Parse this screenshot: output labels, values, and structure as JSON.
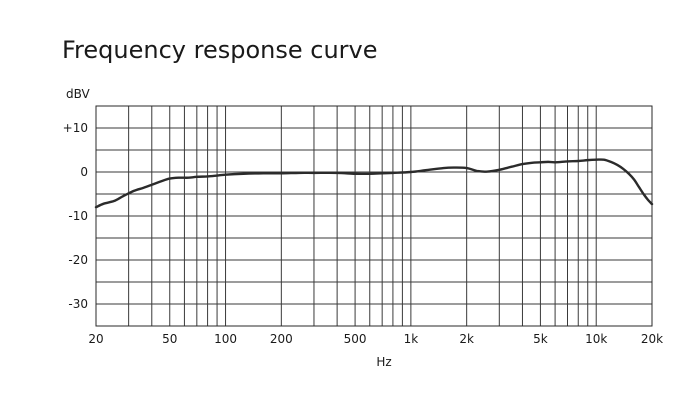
{
  "chart_data": {
    "type": "line",
    "title": "Frequency response curve",
    "xlabel": "Hz",
    "ylabel": "dBV",
    "x_scale": "log",
    "xlim": [
      20,
      20000
    ],
    "ylim": [
      -35,
      15
    ],
    "grid": true,
    "x_ticks": [
      {
        "value": 20,
        "label": "20"
      },
      {
        "value": 50,
        "label": "50"
      },
      {
        "value": 100,
        "label": "100"
      },
      {
        "value": 200,
        "label": "200"
      },
      {
        "value": 500,
        "label": "500"
      },
      {
        "value": 1000,
        "label": "1k"
      },
      {
        "value": 2000,
        "label": "2k"
      },
      {
        "value": 5000,
        "label": "5k"
      },
      {
        "value": 10000,
        "label": "10k"
      },
      {
        "value": 20000,
        "label": "20k"
      }
    ],
    "x_minor_grid": [
      30,
      40,
      60,
      70,
      80,
      90,
      300,
      400,
      600,
      700,
      800,
      900,
      3000,
      4000,
      6000,
      7000,
      8000,
      9000
    ],
    "y_ticks": [
      {
        "value": 10,
        "label": "+10"
      },
      {
        "value": 0,
        "label": "0"
      },
      {
        "value": -10,
        "label": "-10"
      },
      {
        "value": -20,
        "label": "-20"
      },
      {
        "value": -30,
        "label": "-30"
      }
    ],
    "y_minor_grid": [
      5,
      -5,
      -15,
      -25
    ],
    "series": [
      {
        "x": [
          20,
          22,
          25,
          28,
          32,
          36,
          40,
          45,
          50,
          56,
          63,
          70,
          80,
          90,
          100,
          125,
          160,
          200,
          250,
          300,
          400,
          500,
          600,
          700,
          800,
          1000,
          1200,
          1500,
          1700,
          2000,
          2300,
          2600,
          3000,
          3500,
          4000,
          4500,
          5000,
          5500,
          6000,
          7000,
          8000,
          9000,
          10000,
          11000,
          12000,
          13000,
          14000,
          15000,
          16000,
          17000,
          18000,
          19000,
          20000
        ],
        "y": [
          -8.0,
          -7.2,
          -6.6,
          -5.5,
          -4.3,
          -3.6,
          -2.9,
          -2.1,
          -1.5,
          -1.3,
          -1.3,
          -1.1,
          -1.0,
          -0.8,
          -0.6,
          -0.4,
          -0.3,
          -0.3,
          -0.2,
          -0.2,
          -0.2,
          -0.4,
          -0.4,
          -0.3,
          -0.2,
          0.0,
          0.4,
          0.9,
          1.0,
          0.9,
          0.2,
          0.1,
          0.5,
          1.2,
          1.8,
          2.1,
          2.2,
          2.3,
          2.2,
          2.4,
          2.5,
          2.7,
          2.8,
          2.8,
          2.3,
          1.6,
          0.7,
          -0.4,
          -1.7,
          -3.4,
          -5.0,
          -6.3,
          -7.3
        ]
      }
    ]
  }
}
